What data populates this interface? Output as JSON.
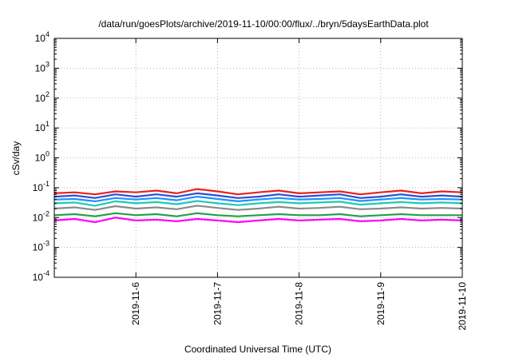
{
  "chart_data": {
    "type": "line",
    "title": "/data/run/goesPlots/archive/2019-11-10/00:00/flux/../bryn/5daysEarthData.plot",
    "xlabel": "Coordinated Universal Time (UTC)",
    "ylabel": "cSv/day",
    "yscale": "log",
    "ylim": [
      0.0001,
      10000
    ],
    "xlim": [
      "2019-11-05T00:00",
      "2019-11-10T00:00"
    ],
    "grid": true,
    "y_ticks": [
      {
        "base": "10",
        "exp": "-4",
        "value": 0.0001
      },
      {
        "base": "10",
        "exp": "-3",
        "value": 0.001
      },
      {
        "base": "10",
        "exp": "-2",
        "value": 0.01
      },
      {
        "base": "10",
        "exp": "-1",
        "value": 0.1
      },
      {
        "base": "10",
        "exp": "0",
        "value": 1
      },
      {
        "base": "10",
        "exp": "1",
        "value": 10
      },
      {
        "base": "10",
        "exp": "2",
        "value": 100
      },
      {
        "base": "10",
        "exp": "3",
        "value": 1000
      },
      {
        "base": "10",
        "exp": "4",
        "value": 10000
      }
    ],
    "x_ticks": [
      "2019-11-6",
      "2019-11-7",
      "2019-11-8",
      "2019-11-9",
      "2019-11-10"
    ],
    "series": [
      {
        "color": "#e8211b",
        "x": [
          "2019-11-05T00:00",
          "2019-11-05T06:00",
          "2019-11-05T12:00",
          "2019-11-05T18:00",
          "2019-11-06T00:00",
          "2019-11-06T06:00",
          "2019-11-06T12:00",
          "2019-11-06T18:00",
          "2019-11-07T00:00",
          "2019-11-07T06:00",
          "2019-11-07T12:00",
          "2019-11-07T18:00",
          "2019-11-08T00:00",
          "2019-11-08T06:00",
          "2019-11-08T12:00",
          "2019-11-08T18:00",
          "2019-11-09T00:00",
          "2019-11-09T06:00",
          "2019-11-09T12:00",
          "2019-11-09T18:00",
          "2019-11-10T00:00"
        ],
        "y": [
          0.065,
          0.07,
          0.06,
          0.075,
          0.07,
          0.08,
          0.065,
          0.09,
          0.075,
          0.06,
          0.07,
          0.08,
          0.065,
          0.07,
          0.075,
          0.06,
          0.07,
          0.08,
          0.065,
          0.075,
          0.07
        ]
      },
      {
        "color": "#2a4fd6",
        "x": [
          "2019-11-05T00:00",
          "2019-11-05T06:00",
          "2019-11-05T12:00",
          "2019-11-05T18:00",
          "2019-11-06T00:00",
          "2019-11-06T06:00",
          "2019-11-06T12:00",
          "2019-11-06T18:00",
          "2019-11-07T00:00",
          "2019-11-07T06:00",
          "2019-11-07T12:00",
          "2019-11-07T18:00",
          "2019-11-08T00:00",
          "2019-11-08T06:00",
          "2019-11-08T12:00",
          "2019-11-08T18:00",
          "2019-11-09T00:00",
          "2019-11-09T06:00",
          "2019-11-09T12:00",
          "2019-11-09T18:00",
          "2019-11-10T00:00"
        ],
        "y": [
          0.05,
          0.055,
          0.045,
          0.06,
          0.05,
          0.06,
          0.05,
          0.065,
          0.055,
          0.045,
          0.05,
          0.06,
          0.05,
          0.055,
          0.06,
          0.045,
          0.05,
          0.06,
          0.05,
          0.055,
          0.05
        ]
      },
      {
        "color": "#1e90ff",
        "x": [
          "2019-11-05T00:00",
          "2019-11-05T06:00",
          "2019-11-05T12:00",
          "2019-11-05T18:00",
          "2019-11-06T00:00",
          "2019-11-06T06:00",
          "2019-11-06T12:00",
          "2019-11-06T18:00",
          "2019-11-07T00:00",
          "2019-11-07T06:00",
          "2019-11-07T12:00",
          "2019-11-07T18:00",
          "2019-11-08T00:00",
          "2019-11-08T06:00",
          "2019-11-08T12:00",
          "2019-11-08T18:00",
          "2019-11-09T00:00",
          "2019-11-09T06:00",
          "2019-11-09T12:00",
          "2019-11-09T18:00",
          "2019-11-10T00:00"
        ],
        "y": [
          0.04,
          0.042,
          0.035,
          0.045,
          0.04,
          0.045,
          0.038,
          0.05,
          0.042,
          0.035,
          0.04,
          0.045,
          0.04,
          0.042,
          0.045,
          0.036,
          0.04,
          0.045,
          0.04,
          0.042,
          0.04
        ]
      },
      {
        "color": "#1fc8b8",
        "x": [
          "2019-11-05T00:00",
          "2019-11-05T06:00",
          "2019-11-05T12:00",
          "2019-11-05T18:00",
          "2019-11-06T00:00",
          "2019-11-06T06:00",
          "2019-11-06T12:00",
          "2019-11-06T18:00",
          "2019-11-07T00:00",
          "2019-11-07T06:00",
          "2019-11-07T12:00",
          "2019-11-07T18:00",
          "2019-11-08T00:00",
          "2019-11-08T06:00",
          "2019-11-08T12:00",
          "2019-11-08T18:00",
          "2019-11-09T00:00",
          "2019-11-09T06:00",
          "2019-11-09T12:00",
          "2019-11-09T18:00",
          "2019-11-10T00:00"
        ],
        "y": [
          0.03,
          0.032,
          0.025,
          0.035,
          0.03,
          0.033,
          0.028,
          0.036,
          0.03,
          0.026,
          0.03,
          0.033,
          0.03,
          0.032,
          0.034,
          0.027,
          0.03,
          0.033,
          0.03,
          0.032,
          0.03
        ]
      },
      {
        "color": "#22a04a",
        "x": [
          "2019-11-05T00:00",
          "2019-11-05T06:00",
          "2019-11-05T12:00",
          "2019-11-05T18:00",
          "2019-11-06T00:00",
          "2019-11-06T06:00",
          "2019-11-06T12:00",
          "2019-11-06T18:00",
          "2019-11-07T00:00",
          "2019-11-07T06:00",
          "2019-11-07T12:00",
          "2019-11-07T18:00",
          "2019-11-08T00:00",
          "2019-11-08T06:00",
          "2019-11-08T12:00",
          "2019-11-08T18:00",
          "2019-11-09T00:00",
          "2019-11-09T06:00",
          "2019-11-09T12:00",
          "2019-11-09T18:00",
          "2019-11-10T00:00"
        ],
        "y": [
          0.012,
          0.013,
          0.011,
          0.014,
          0.012,
          0.013,
          0.011,
          0.014,
          0.012,
          0.011,
          0.012,
          0.013,
          0.012,
          0.012,
          0.013,
          0.011,
          0.012,
          0.013,
          0.012,
          0.012,
          0.012
        ]
      },
      {
        "color": "#8a8a8a",
        "x": [
          "2019-11-05T00:00",
          "2019-11-05T06:00",
          "2019-11-05T12:00",
          "2019-11-05T18:00",
          "2019-11-06T00:00",
          "2019-11-06T06:00",
          "2019-11-06T12:00",
          "2019-11-06T18:00",
          "2019-11-07T00:00",
          "2019-11-07T06:00",
          "2019-11-07T12:00",
          "2019-11-07T18:00",
          "2019-11-08T00:00",
          "2019-11-08T06:00",
          "2019-11-08T12:00",
          "2019-11-08T18:00",
          "2019-11-09T00:00",
          "2019-11-09T06:00",
          "2019-11-09T12:00",
          "2019-11-09T18:00",
          "2019-11-10T00:00"
        ],
        "y": [
          0.02,
          0.022,
          0.018,
          0.024,
          0.02,
          0.022,
          0.019,
          0.025,
          0.021,
          0.018,
          0.02,
          0.023,
          0.02,
          0.021,
          0.023,
          0.019,
          0.02,
          0.022,
          0.02,
          0.021,
          0.02
        ]
      },
      {
        "color": "#ff00ff",
        "x": [
          "2019-11-05T00:00",
          "2019-11-05T06:00",
          "2019-11-05T12:00",
          "2019-11-05T18:00",
          "2019-11-06T00:00",
          "2019-11-06T06:00",
          "2019-11-06T12:00",
          "2019-11-06T18:00",
          "2019-11-07T00:00",
          "2019-11-07T06:00",
          "2019-11-07T12:00",
          "2019-11-07T18:00",
          "2019-11-08T00:00",
          "2019-11-08T06:00",
          "2019-11-08T12:00",
          "2019-11-08T18:00",
          "2019-11-09T00:00",
          "2019-11-09T06:00",
          "2019-11-09T12:00",
          "2019-11-09T18:00",
          "2019-11-10T00:00"
        ],
        "y": [
          0.008,
          0.009,
          0.007,
          0.01,
          0.008,
          0.0085,
          0.0075,
          0.009,
          0.008,
          0.007,
          0.008,
          0.009,
          0.008,
          0.0085,
          0.009,
          0.0075,
          0.008,
          0.009,
          0.008,
          0.0085,
          0.008
        ]
      }
    ]
  }
}
